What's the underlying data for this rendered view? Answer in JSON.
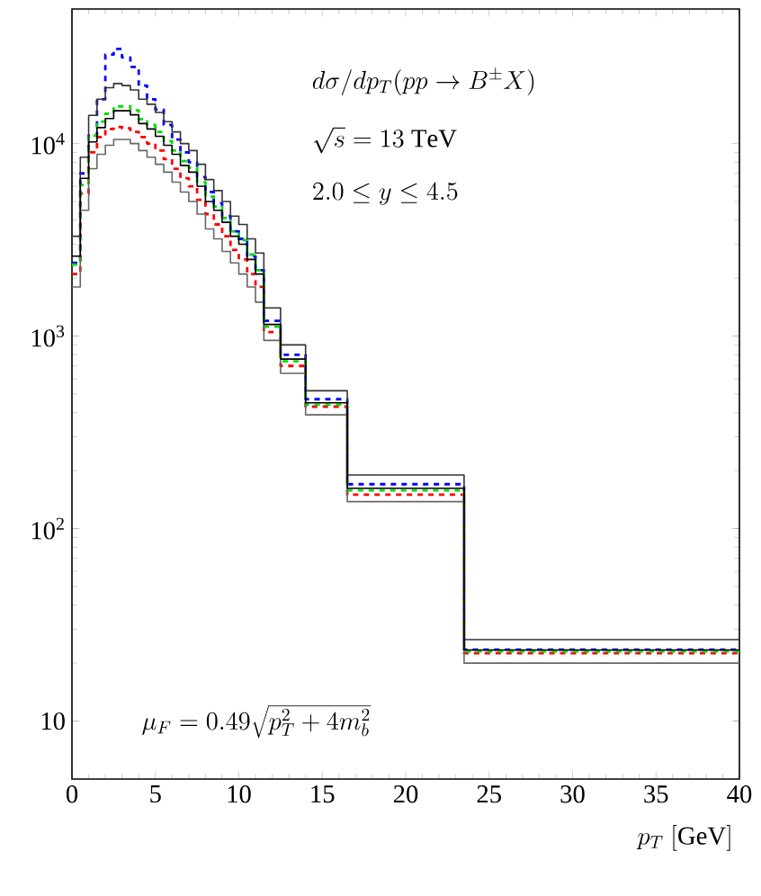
{
  "chart_data": {
    "type": "histogram",
    "bins": [
      0,
      0.5,
      1,
      1.5,
      2,
      2.5,
      3,
      3.5,
      4,
      4.5,
      5,
      5.5,
      6,
      6.5,
      7,
      7.5,
      8,
      8.5,
      9,
      9.5,
      10,
      10.5,
      11,
      11.5,
      12.5,
      14,
      16.5,
      23.5,
      40
    ],
    "series": [
      {
        "color": "#0000ff",
        "line_style": "dashed",
        "values": [
          2400,
          7000,
          11000,
          17000,
          29000,
          31000,
          28000,
          25000,
          20000,
          17000,
          15000,
          12500,
          10500,
          9000,
          8000,
          6700,
          5600,
          4900,
          4200,
          3500,
          3200,
          2600,
          2200,
          1200,
          800,
          470,
          170,
          23.5
        ]
      },
      {
        "color": "#ff0000",
        "line_style": "dashed",
        "values": [
          2100,
          5500,
          9000,
          10800,
          11900,
          12200,
          12000,
          11500,
          10800,
          10000,
          9200,
          8300,
          7400,
          6600,
          6000,
          5100,
          4300,
          3800,
          3300,
          2800,
          2500,
          2100,
          1800,
          1050,
          700,
          430,
          150,
          22.5
        ]
      },
      {
        "color": "#00dd00",
        "line_style": "dashed",
        "values": [
          2350,
          6100,
          11000,
          13000,
          14300,
          15600,
          15600,
          14900,
          13400,
          12500,
          11500,
          10300,
          9200,
          8100,
          7500,
          6300,
          5300,
          4700,
          4100,
          3500,
          3150,
          2650,
          2200,
          1120,
          740,
          440,
          158,
          23
        ]
      },
      {
        "color": "#333333",
        "line_style": "solid",
        "values": [
          3300,
          8500,
          14000,
          17000,
          19500,
          20500,
          20000,
          19000,
          17000,
          16000,
          14500,
          13000,
          11500,
          10000,
          9200,
          7800,
          6500,
          5700,
          5000,
          4200,
          3800,
          3200,
          2700,
          1400,
          900,
          520,
          190,
          26.5
        ]
      },
      {
        "color": "#666666",
        "line_style": "solid",
        "values": [
          1800,
          4500,
          7400,
          8800,
          9800,
          10500,
          10500,
          10000,
          9200,
          8500,
          7800,
          7100,
          6300,
          5600,
          5000,
          4300,
          3600,
          3200,
          2750,
          2400,
          2100,
          1800,
          1500,
          950,
          640,
          390,
          138,
          20
        ]
      },
      {
        "color": "#000000",
        "line_style": "solid",
        "values": [
          2600,
          6600,
          10200,
          12100,
          13500,
          14800,
          14800,
          14100,
          12700,
          11900,
          10900,
          9800,
          8800,
          7700,
          7100,
          6000,
          5000,
          4500,
          3900,
          3300,
          3000,
          2500,
          2100,
          1150,
          760,
          450,
          162,
          23.4
        ]
      }
    ],
    "xlabel": "p_T\\ [\\mathrm{GeV}]",
    "annotations": [
      "d\\sigma/dp_T(pp\\rightarrow B^{\\pm}X)",
      "\\sqrt{s}=13\\ \\mathrm{TeV}",
      "2.0\\leq y\\leq 4.5",
      "\\mu_F=0.49\\sqrt{p_T^2+4m_b^2}"
    ],
    "log": "y",
    "xlim": [
      0,
      40
    ],
    "ylim": [
      5,
      50000
    ],
    "xticks": [
      0,
      5,
      10,
      15,
      20,
      25,
      30,
      35,
      40
    ],
    "yticks": [
      10,
      {
        "value": 100,
        "label": "10$^{2}$"
      },
      {
        "value": 1000,
        "label": "10$^{3}$"
      },
      {
        "value": 10000,
        "label": "10$^{4}$"
      }
    ],
    "marker": "none"
  }
}
